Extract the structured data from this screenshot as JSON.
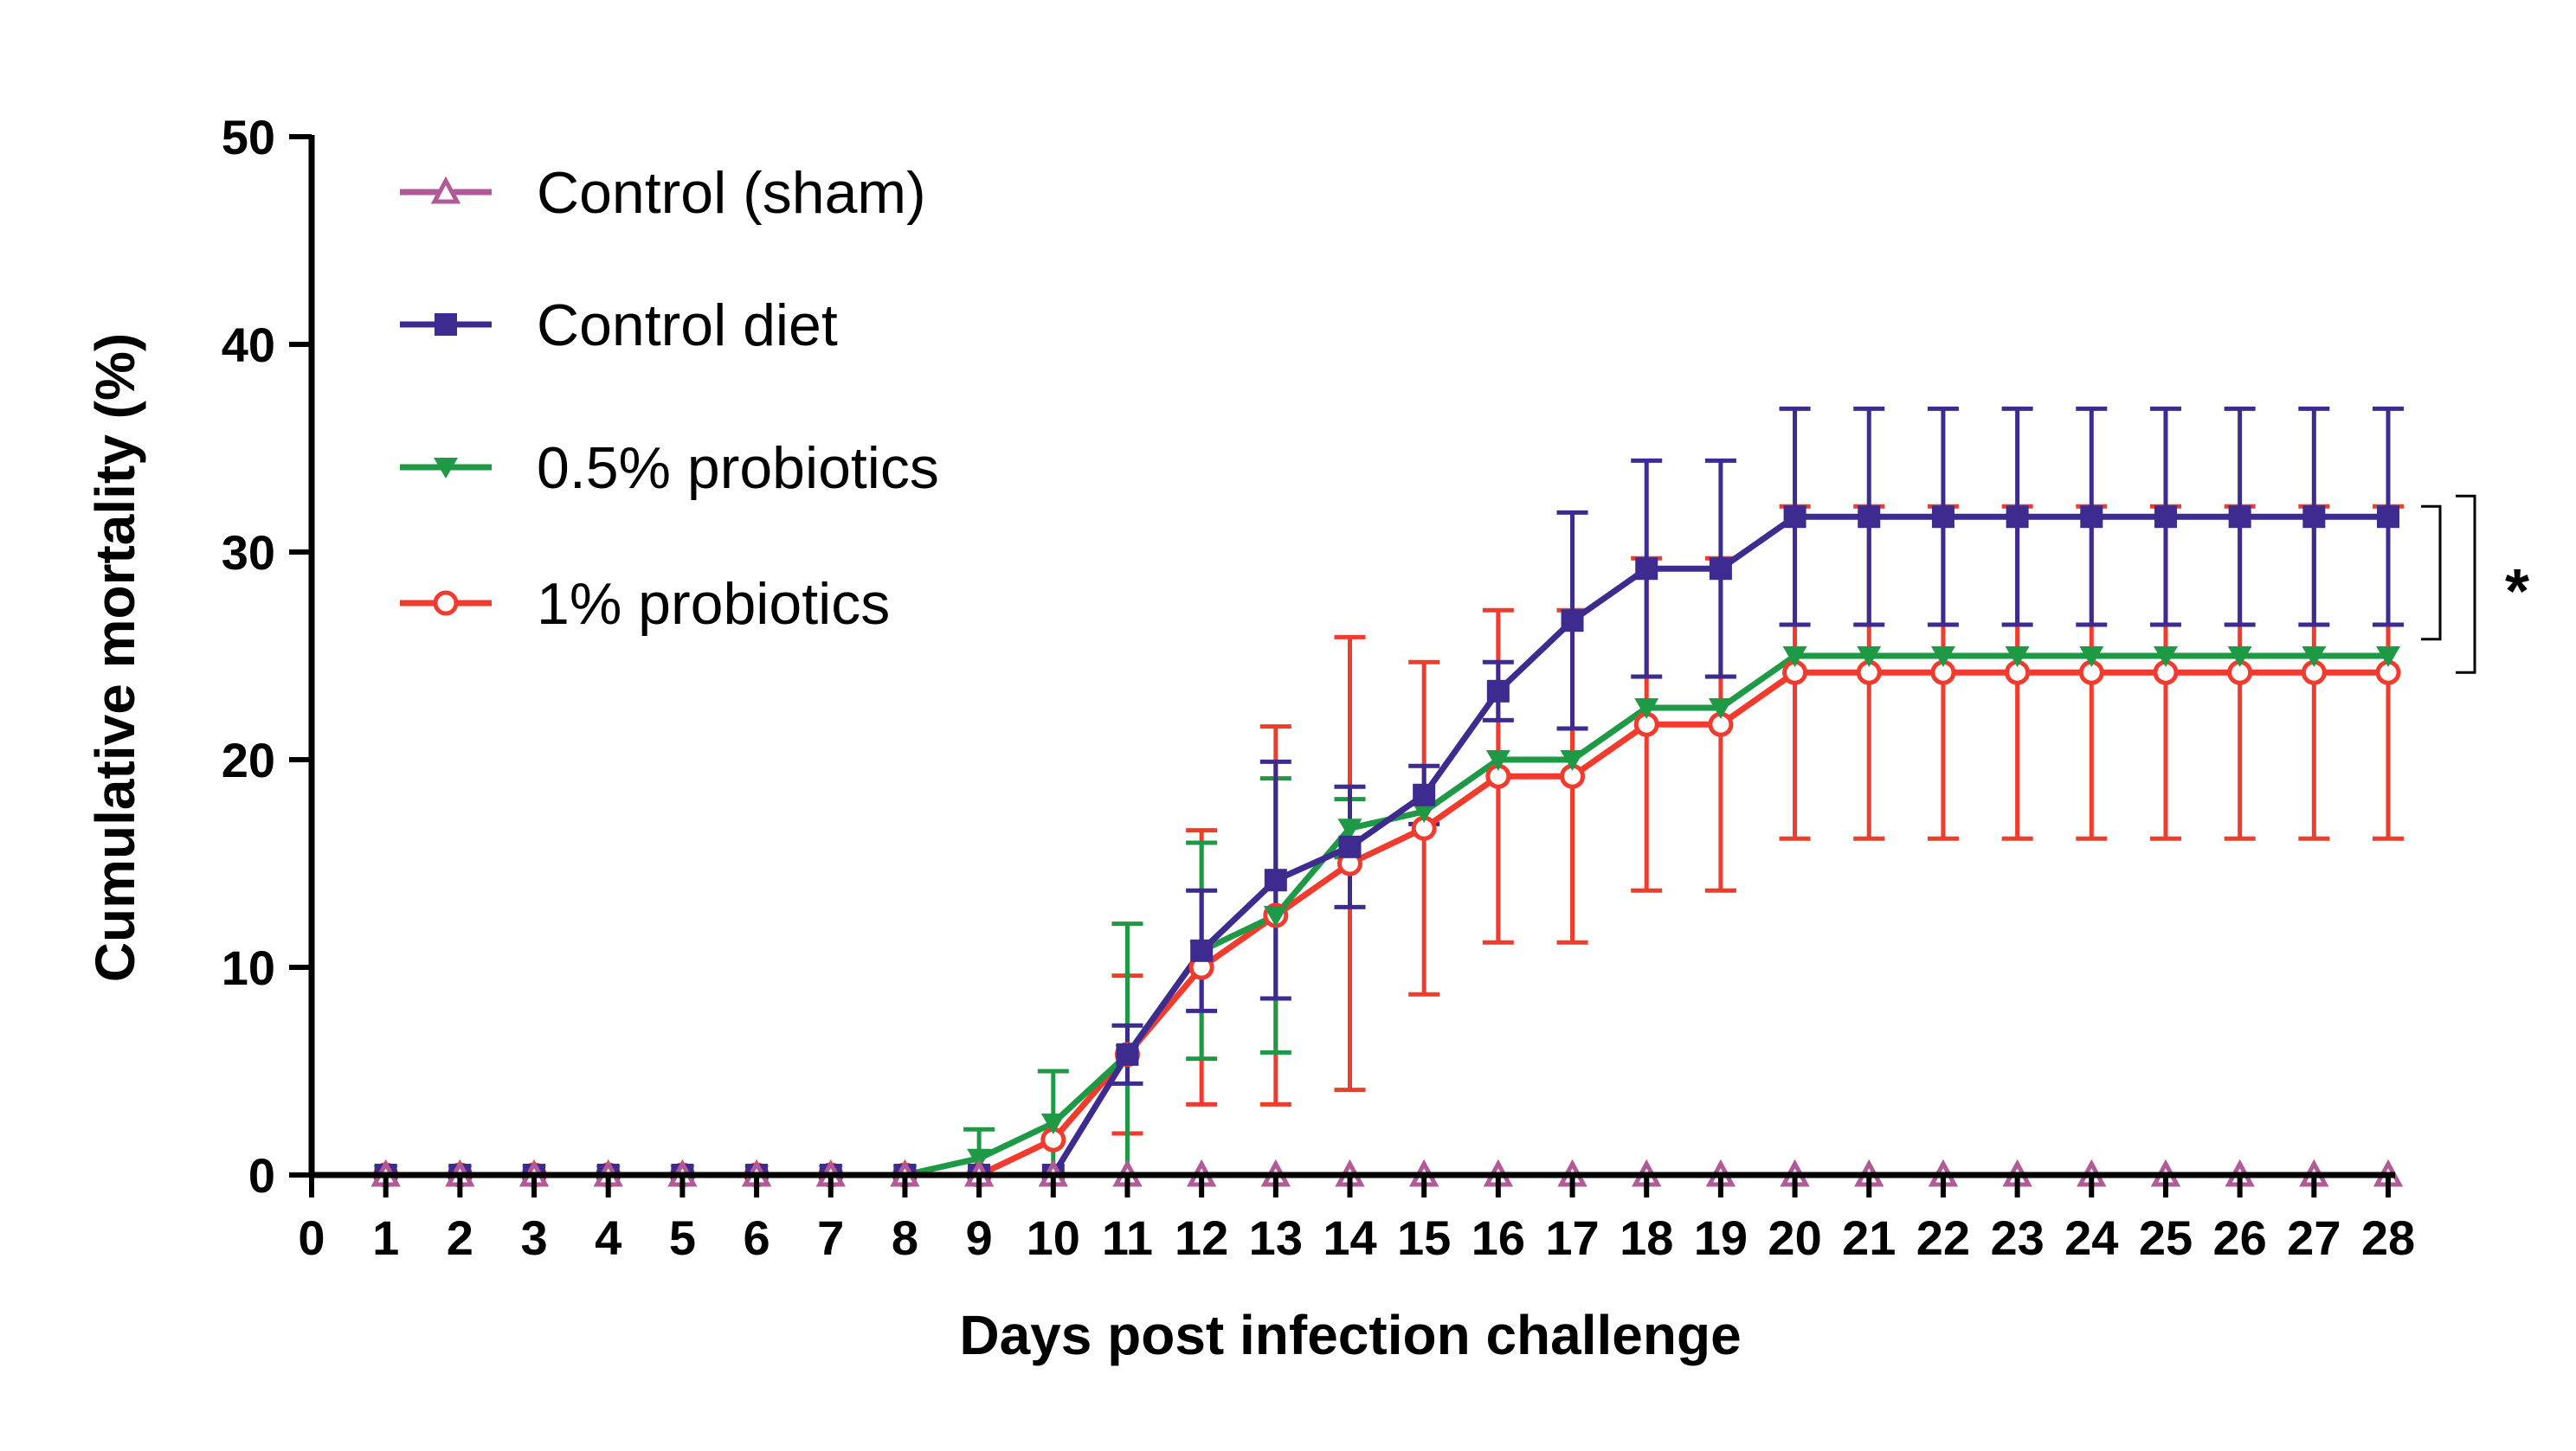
{
  "chart_data": {
    "type": "line",
    "title": "",
    "xlabel": "Days post infection challenge",
    "ylabel": "Cumulative mortality (%)",
    "xlim": [
      0,
      28
    ],
    "ylim": [
      0,
      50
    ],
    "x_ticks": [
      "0",
      "1",
      "2",
      "3",
      "4",
      "5",
      "6",
      "7",
      "8",
      "9",
      "10",
      "11",
      "12",
      "13",
      "14",
      "15",
      "16",
      "17",
      "18",
      "19",
      "20",
      "21",
      "22",
      "23",
      "24",
      "25",
      "26",
      "27",
      "28"
    ],
    "y_ticks": [
      "0",
      "10",
      "20",
      "30",
      "40",
      "50"
    ],
    "grid": false,
    "legend_position": "top-left",
    "x": [
      1,
      2,
      3,
      4,
      5,
      6,
      7,
      8,
      9,
      10,
      11,
      12,
      13,
      14,
      15,
      16,
      17,
      18,
      19,
      20,
      21,
      22,
      23,
      24,
      25,
      26,
      27,
      28
    ],
    "series": [
      {
        "name": "Control (sham)",
        "color": "#b05a98",
        "marker": "triangle-up-open",
        "values": [
          0,
          0,
          0,
          0,
          0,
          0,
          0,
          0,
          0,
          0,
          0,
          0,
          0,
          0,
          0,
          0,
          0,
          0,
          0,
          0,
          0,
          0,
          0,
          0,
          0,
          0,
          0,
          0
        ],
        "errors": [
          0,
          0,
          0,
          0,
          0,
          0,
          0,
          0,
          0,
          0,
          0,
          0,
          0,
          0,
          0,
          0,
          0,
          0,
          0,
          0,
          0,
          0,
          0,
          0,
          0,
          0,
          0,
          0
        ]
      },
      {
        "name": "Control diet",
        "color": "#3d2b8f",
        "marker": "square-filled",
        "values": [
          0,
          0,
          0,
          0,
          0,
          0,
          0,
          0,
          0,
          0,
          5.8,
          10.8,
          14.2,
          15.8,
          18.3,
          23.3,
          26.7,
          29.2,
          29.2,
          31.7,
          31.7,
          31.7,
          31.7,
          31.7,
          31.7,
          31.7,
          31.7,
          31.7
        ],
        "errors": [
          0,
          0,
          0,
          0,
          0,
          0,
          0,
          0,
          0,
          0,
          1.4,
          2.9,
          5.7,
          2.9,
          1.4,
          1.4,
          5.2,
          5.2,
          5.2,
          5.2,
          5.2,
          5.2,
          5.2,
          5.2,
          5.2,
          5.2,
          5.2,
          5.2
        ]
      },
      {
        "name": "0.5% probiotics",
        "color": "#1e9a46",
        "marker": "triangle-down-filled",
        "values": [
          0,
          0,
          0,
          0,
          0,
          0,
          0,
          0,
          0.8,
          2.5,
          5.8,
          10.8,
          12.5,
          16.7,
          17.5,
          20,
          20,
          22.5,
          22.5,
          25,
          25,
          25,
          25,
          25,
          25,
          25,
          25,
          25
        ],
        "errors": [
          0,
          0,
          0,
          0,
          0,
          0,
          0,
          0,
          1.4,
          2.5,
          6.3,
          5.2,
          6.6,
          1.4,
          0,
          0,
          0,
          0,
          0,
          0,
          0,
          0,
          0,
          0,
          0,
          0,
          0,
          0
        ]
      },
      {
        "name": "1% probiotics",
        "color": "#f03b2d",
        "marker": "circle-open",
        "values": [
          0,
          0,
          0,
          0,
          0,
          0,
          0,
          0,
          0,
          1.7,
          5.8,
          10,
          12.5,
          15,
          16.7,
          19.2,
          19.2,
          21.7,
          21.7,
          24.2,
          24.2,
          24.2,
          24.2,
          24.2,
          24.2,
          24.2,
          24.2,
          24.2
        ],
        "errors": [
          0,
          0,
          0,
          0,
          0,
          0,
          0,
          0,
          0,
          0,
          3.8,
          6.6,
          9.1,
          10.9,
          8.0,
          8.0,
          8.0,
          8.0,
          8.0,
          8.0,
          8.0,
          8.0,
          8.0,
          8.0,
          8.0,
          8.0,
          8.0,
          8.0
        ]
      }
    ],
    "significance": {
      "label": "*",
      "between": [
        "Control diet",
        "0.5% probiotics"
      ]
    }
  }
}
